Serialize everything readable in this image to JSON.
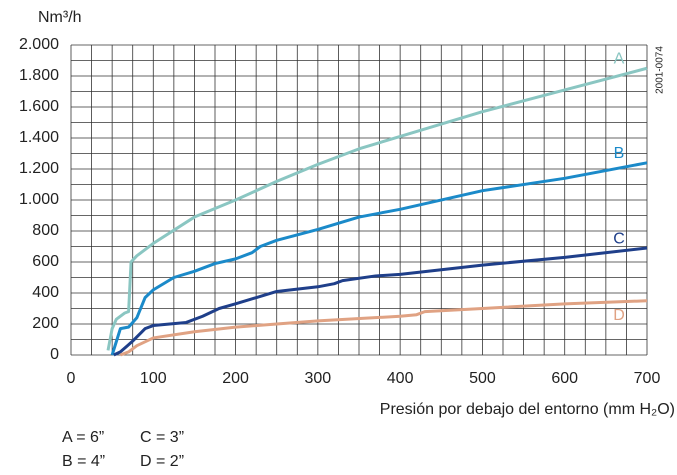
{
  "chart_data": {
    "type": "line",
    "y_unit": "Nm³/h",
    "x_label": "Presión por debajo del entorno (mm H₂O)",
    "code": "2001-0074",
    "xlim": [
      0,
      700
    ],
    "ylim": [
      0,
      2000
    ],
    "xticks": [
      0,
      100,
      200,
      300,
      400,
      500,
      600,
      700
    ],
    "x_grid": [
      0,
      25,
      50,
      75,
      100,
      125,
      150,
      175,
      200,
      225,
      250,
      275,
      300,
      325,
      350,
      375,
      400,
      425,
      450,
      475,
      500,
      525,
      550,
      575,
      600,
      625,
      650,
      675,
      700
    ],
    "yticks": [
      {
        "value": 0,
        "label": "0"
      },
      {
        "value": 200,
        "label": "200"
      },
      {
        "value": 400,
        "label": "400"
      },
      {
        "value": 600,
        "label": "600"
      },
      {
        "value": 800,
        "label": "800"
      },
      {
        "value": 1000,
        "label": "1.000"
      },
      {
        "value": 1200,
        "label": "1.200"
      },
      {
        "value": 1400,
        "label": "1.400"
      },
      {
        "value": 1600,
        "label": "1.600"
      },
      {
        "value": 1800,
        "label": "1.800"
      },
      {
        "value": 2000,
        "label": "2.000"
      }
    ],
    "y_grid": [
      0,
      100,
      200,
      300,
      400,
      500,
      600,
      700,
      800,
      900,
      1000,
      1100,
      1200,
      1300,
      1400,
      1500,
      1600,
      1700,
      1800,
      1900,
      2000
    ],
    "grid": true,
    "series": [
      {
        "name": "A",
        "color": "#8ac6c2",
        "x": [
          45,
          50,
          55,
          65,
          70,
          73,
          80,
          100,
          150,
          200,
          250,
          300,
          350,
          400,
          500,
          600,
          700
        ],
        "values": [
          30,
          170,
          230,
          270,
          280,
          600,
          640,
          720,
          890,
          1000,
          1120,
          1230,
          1330,
          1410,
          1570,
          1710,
          1850
        ]
      },
      {
        "name": "B",
        "color": "#1b8ac9",
        "x": [
          50,
          60,
          70,
          80,
          90,
          100,
          125,
          150,
          175,
          200,
          220,
          230,
          250,
          300,
          350,
          400,
          500,
          600,
          700
        ],
        "values": [
          0,
          170,
          180,
          240,
          370,
          420,
          500,
          540,
          590,
          620,
          660,
          700,
          740,
          810,
          890,
          940,
          1060,
          1140,
          1240
        ]
      },
      {
        "name": "C",
        "color": "#1f3f8a",
        "x": [
          52,
          60,
          75,
          90,
          100,
          140,
          160,
          180,
          200,
          250,
          300,
          320,
          330,
          370,
          400,
          500,
          600,
          700
        ],
        "values": [
          0,
          20,
          90,
          170,
          190,
          210,
          250,
          300,
          330,
          410,
          440,
          460,
          480,
          510,
          520,
          580,
          630,
          690
        ]
      },
      {
        "name": "D",
        "color": "#e0a283",
        "x": [
          60,
          70,
          80,
          100,
          150,
          200,
          250,
          300,
          400,
          420,
          430,
          500,
          600,
          700
        ],
        "values": [
          0,
          20,
          60,
          110,
          150,
          180,
          200,
          220,
          250,
          260,
          280,
          300,
          330,
          350
        ]
      }
    ],
    "notes": [
      [
        "A = 6”",
        "C = 3”"
      ],
      [
        "B = 4”",
        "D = 2”"
      ]
    ]
  }
}
